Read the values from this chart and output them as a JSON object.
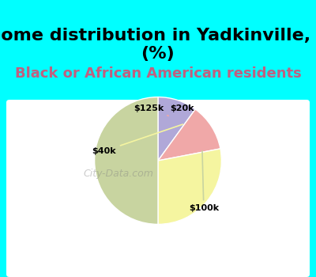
{
  "title": "Income distribution in Yadkinville, NC\n(%)",
  "subtitle": "Black or African American residents",
  "slices": [
    {
      "label": "$20k",
      "value": 10,
      "color": "#b0a8d8"
    },
    {
      "label": "$125k",
      "value": 12,
      "color": "#f0a8a8"
    },
    {
      "label": "$40k",
      "value": 28,
      "color": "#f5f5a0"
    },
    {
      "label": "$100k",
      "value": 50,
      "color": "#c8d4a0"
    }
  ],
  "startangle": 90,
  "title_fontsize": 16,
  "subtitle_fontsize": 13,
  "subtitle_color": "#c06080",
  "title_bg_color": "#00ffff",
  "chart_area_bg": "#e8f5e8",
  "fig_bg_color": "#00ffff"
}
